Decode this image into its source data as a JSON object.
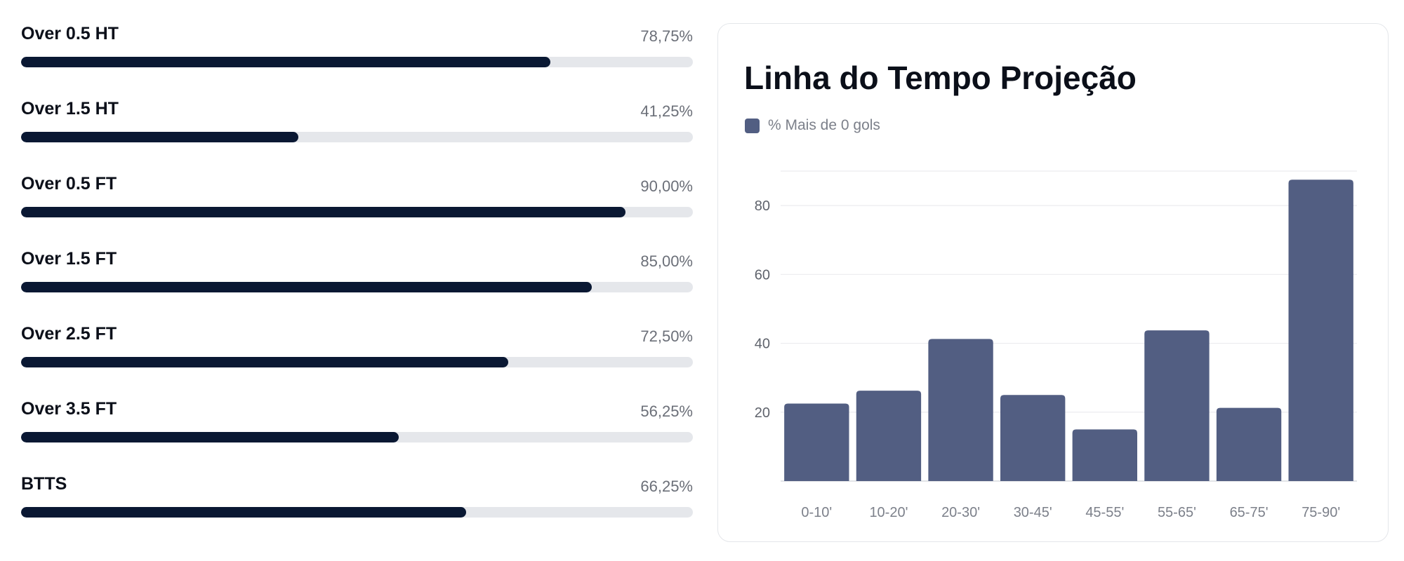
{
  "stats": [
    {
      "label": "Over 0.5 HT",
      "value_text": "78,75%",
      "percent": 78.75
    },
    {
      "label": "Over 1.5 HT",
      "value_text": "41,25%",
      "percent": 41.25
    },
    {
      "label": "Over 0.5 FT",
      "value_text": "90,00%",
      "percent": 90.0
    },
    {
      "label": "Over 1.5 FT",
      "value_text": "85,00%",
      "percent": 85.0
    },
    {
      "label": "Over 2.5 FT",
      "value_text": "72,50%",
      "percent": 72.5
    },
    {
      "label": "Over 3.5 FT",
      "value_text": "56,25%",
      "percent": 56.25
    },
    {
      "label": "BTTS",
      "value_text": "66,25%",
      "percent": 66.25
    }
  ],
  "chart_data": {
    "type": "bar",
    "title": "Linha do Tempo Projeção",
    "categories": [
      "0-10'",
      "10-20'",
      "20-30'",
      "30-45'",
      "45-55'",
      "55-65'",
      "65-75'",
      "75-90'"
    ],
    "series": [
      {
        "name": "% Mais de 0 gols",
        "values": [
          22.5,
          26.25,
          41.25,
          25.0,
          15.0,
          43.75,
          21.25,
          87.5
        ]
      }
    ],
    "yticks": [
      20,
      40,
      60,
      80
    ],
    "ylim": [
      0,
      90
    ],
    "xlabel": "",
    "ylabel": "",
    "grid": true,
    "legend_position": "top-left",
    "bar_color": "#525e82"
  }
}
